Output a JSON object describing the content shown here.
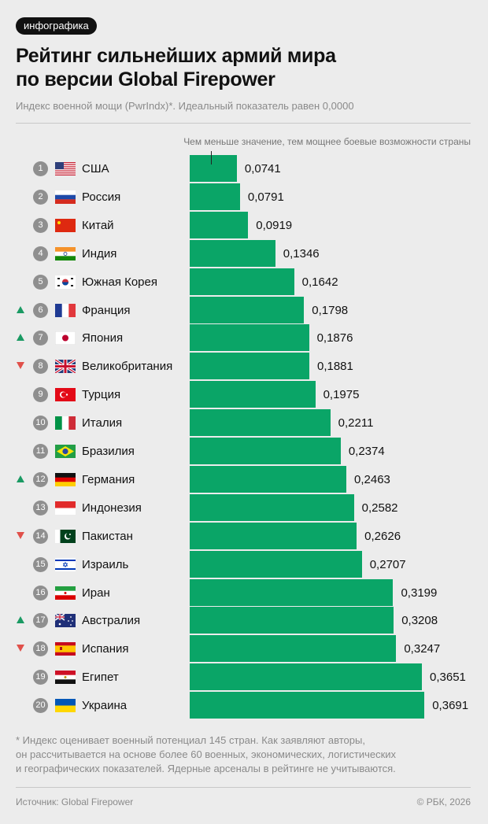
{
  "tag": "инфографика",
  "title_line1": "Рейтинг сильнейших армий мира",
  "title_line2": "по версии Global Firepower",
  "subtitle": "Индекс военной мощи (PwrIndx)*. Идеальный показатель равен 0,0000",
  "note": "Чем меньше значение, тем мощнее боевые возможности страны",
  "colors": {
    "bar": "#0aa567",
    "up": "#1a9a63",
    "down": "#e0504a",
    "rank": "#8f8f8f"
  },
  "chart_data": {
    "type": "bar",
    "orientation": "horizontal",
    "xlim": [
      0,
      0.3691
    ],
    "rows": [
      {
        "rank": "1",
        "country": "США",
        "flag": "flag-us",
        "value": 0.0741,
        "label": "0,0741",
        "change": ""
      },
      {
        "rank": "2",
        "country": "Россия",
        "flag": "flag-ru",
        "value": 0.0791,
        "label": "0,0791",
        "change": ""
      },
      {
        "rank": "3",
        "country": "Китай",
        "flag": "flag-cn",
        "value": 0.0919,
        "label": "0,0919",
        "change": ""
      },
      {
        "rank": "4",
        "country": "Индия",
        "flag": "flag-in",
        "value": 0.1346,
        "label": "0,1346",
        "change": ""
      },
      {
        "rank": "5",
        "country": "Южная Корея",
        "flag": "flag-kr",
        "value": 0.1642,
        "label": "0,1642",
        "change": ""
      },
      {
        "rank": "6",
        "country": "Франция",
        "flag": "flag-fr",
        "value": 0.1798,
        "label": "0,1798",
        "change": "up"
      },
      {
        "rank": "7",
        "country": "Япония",
        "flag": "flag-jp",
        "value": 0.1876,
        "label": "0,1876",
        "change": "up"
      },
      {
        "rank": "8",
        "country": "Великобритания",
        "flag": "flag-gb",
        "value": 0.1881,
        "label": "0,1881",
        "change": "down"
      },
      {
        "rank": "9",
        "country": "Турция",
        "flag": "flag-tr",
        "value": 0.1975,
        "label": "0,1975",
        "change": ""
      },
      {
        "rank": "10",
        "country": "Италия",
        "flag": "flag-it",
        "value": 0.2211,
        "label": "0,2211",
        "change": ""
      },
      {
        "rank": "11",
        "country": "Бразилия",
        "flag": "flag-br",
        "value": 0.2374,
        "label": "0,2374",
        "change": ""
      },
      {
        "rank": "12",
        "country": "Германия",
        "flag": "flag-de",
        "value": 0.2463,
        "label": "0,2463",
        "change": "up"
      },
      {
        "rank": "13",
        "country": "Индонезия",
        "flag": "flag-id",
        "value": 0.2582,
        "label": "0,2582",
        "change": ""
      },
      {
        "rank": "14",
        "country": "Пакистан",
        "flag": "flag-pk",
        "value": 0.2626,
        "label": "0,2626",
        "change": "down"
      },
      {
        "rank": "15",
        "country": "Израиль",
        "flag": "flag-il",
        "value": 0.2707,
        "label": "0,2707",
        "change": ""
      },
      {
        "rank": "16",
        "country": "Иран",
        "flag": "flag-ir",
        "value": 0.3199,
        "label": "0,3199",
        "change": ""
      },
      {
        "rank": "17",
        "country": "Австралия",
        "flag": "flag-au",
        "value": 0.3208,
        "label": "0,3208",
        "change": "up"
      },
      {
        "rank": "18",
        "country": "Испания",
        "flag": "flag-es",
        "value": 0.3247,
        "label": "0,3247",
        "change": "down"
      },
      {
        "rank": "19",
        "country": "Египет",
        "flag": "flag-eg",
        "value": 0.3651,
        "label": "0,3651",
        "change": ""
      },
      {
        "rank": "20",
        "country": "Украина",
        "flag": "flag-ua",
        "value": 0.3691,
        "label": "0,3691",
        "change": ""
      }
    ]
  },
  "footnote_lines": [
    "* Индекс оценивает военный потенциал 145 стран. Как заявляют авторы,",
    "он рассчитывается на основе более 60 военных, экономических, логистических",
    "и географических показателей. Ядерные арсеналы в рейтинге не учитываются."
  ],
  "source": "Источник: Global Firepower",
  "copyright": "© РБК, 2026"
}
